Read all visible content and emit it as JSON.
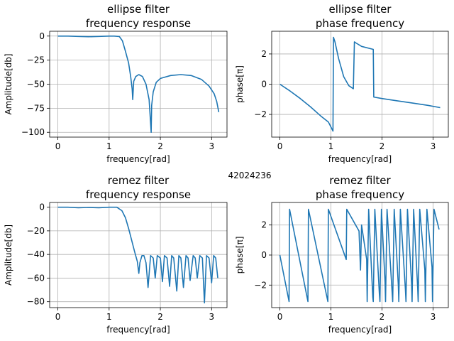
{
  "figure_label": "42024236",
  "colors": {
    "line": "#1f77b4",
    "grid": "#b0b0b0"
  },
  "chart_data": [
    {
      "type": "line",
      "title": "ellipse filter\nfrequency response",
      "xlabel": "frequency[rad]",
      "ylabel": "Amplitude[db]",
      "xlim": [
        -0.16,
        3.3
      ],
      "ylim": [
        -105,
        5
      ],
      "xticks": [
        0,
        1,
        2,
        3
      ],
      "yticks": [
        0,
        -25,
        -50,
        -75,
        -100
      ],
      "grid": true,
      "x": [
        0,
        0.2,
        0.4,
        0.6,
        0.8,
        1.0,
        1.1,
        1.2,
        1.26,
        1.32,
        1.38,
        1.42,
        1.45,
        1.46,
        1.48,
        1.52,
        1.58,
        1.65,
        1.72,
        1.78,
        1.82,
        1.83,
        1.86,
        1.92,
        2.0,
        2.2,
        2.4,
        2.6,
        2.8,
        2.95,
        3.05,
        3.1,
        3.14
      ],
      "series": [
        {
          "values": [
            0,
            0,
            -0.4,
            -0.7,
            -0.4,
            0,
            0,
            -0.5,
            -5,
            -16,
            -28,
            -42,
            -55,
            -66,
            -47,
            -42,
            -40,
            -42,
            -50,
            -66,
            -100,
            -72,
            -58,
            -48,
            -44,
            -41,
            -40,
            -41,
            -45,
            -52,
            -60,
            -68,
            -79
          ]
        }
      ]
    },
    {
      "type": "line",
      "title": "ellipse filter\nphase frequency",
      "xlabel": "frequency[rad]",
      "ylabel": "phase[π]",
      "xlim": [
        -0.16,
        3.3
      ],
      "ylim": [
        -3.5,
        3.5
      ],
      "xticks": [
        0,
        1,
        2,
        3
      ],
      "yticks": [
        2,
        0,
        -2
      ],
      "grid": true,
      "x": [
        0,
        0.2,
        0.4,
        0.6,
        0.8,
        0.95,
        1.04,
        1.05,
        1.08,
        1.15,
        1.25,
        1.35,
        1.44,
        1.46,
        1.48,
        1.6,
        1.83,
        1.84,
        2.0,
        2.3,
        2.6,
        2.9,
        3.14
      ],
      "series": [
        {
          "values": [
            0,
            -0.45,
            -0.95,
            -1.5,
            -2.1,
            -2.5,
            -3.1,
            3.1,
            2.8,
            1.7,
            0.5,
            -0.1,
            -0.3,
            2.8,
            2.75,
            2.5,
            2.3,
            -0.85,
            -0.95,
            -1.1,
            -1.25,
            -1.4,
            -1.55
          ]
        }
      ]
    },
    {
      "type": "line",
      "title": "remez filter\nfrequency response",
      "xlabel": "frequency[rad]",
      "ylabel": "Amplitude[db]",
      "xlim": [
        -0.16,
        3.3
      ],
      "ylim": [
        -85,
        4
      ],
      "xticks": [
        0,
        1,
        2,
        3
      ],
      "yticks": [
        0,
        -20,
        -40,
        -60,
        -80
      ],
      "grid": true,
      "x": [
        0,
        0.2,
        0.4,
        0.6,
        0.8,
        1.0,
        1.15,
        1.25,
        1.32,
        1.38,
        1.44,
        1.5,
        1.55,
        1.58,
        1.6,
        1.64,
        1.68,
        1.72,
        1.76,
        1.81,
        1.86,
        1.9,
        1.94,
        2.0,
        2.04,
        2.08,
        2.13,
        2.18,
        2.22,
        2.26,
        2.32,
        2.36,
        2.4,
        2.45,
        2.5,
        2.54,
        2.58,
        2.64,
        2.68,
        2.72,
        2.77,
        2.82,
        2.86,
        2.9,
        2.95,
        3.0,
        3.04,
        3.08,
        3.12
      ],
      "series": [
        {
          "values": [
            0,
            0,
            -0.5,
            -0.2,
            -0.5,
            0,
            0,
            -3,
            -9,
            -18,
            -28,
            -38,
            -46,
            -56,
            -47,
            -41,
            -41,
            -47,
            -68,
            -41,
            -43,
            -60,
            -41,
            -43,
            -63,
            -41,
            -43,
            -67,
            -41,
            -43,
            -71,
            -41,
            -43,
            -68,
            -41,
            -43,
            -62,
            -41,
            -43,
            -60,
            -41,
            -43,
            -81,
            -41,
            -43,
            -64,
            -41,
            -43,
            -60
          ]
        }
      ]
    },
    {
      "type": "line",
      "title": "remez filter\nphase frequency",
      "xlabel": "frequency[rad]",
      "ylabel": "phase[π]",
      "xlim": [
        -0.16,
        3.3
      ],
      "ylim": [
        -3.5,
        3.5
      ],
      "xticks": [
        0,
        1,
        2,
        3
      ],
      "yticks": [
        2,
        0,
        -2
      ],
      "grid": true,
      "x": [
        0,
        0.18,
        0.19,
        0.55,
        0.56,
        0.94,
        0.95,
        1.3,
        1.31,
        1.55,
        1.58,
        1.6,
        1.7,
        1.71,
        1.74,
        1.82,
        1.83,
        1.86,
        1.95,
        1.96,
        1.99,
        2.06,
        2.07,
        2.1,
        2.2,
        2.21,
        2.24,
        2.32,
        2.33,
        2.36,
        2.46,
        2.47,
        2.5,
        2.58,
        2.59,
        2.62,
        2.7,
        2.71,
        2.74,
        2.84,
        2.85,
        2.88,
        2.98,
        2.99,
        3.02,
        3.12
      ],
      "series": [
        {
          "values": [
            0,
            -3.1,
            3.05,
            -3.1,
            3.05,
            -3.1,
            3.05,
            -0.3,
            3.05,
            1.6,
            -1.0,
            2.0,
            -0.3,
            -3.1,
            3.05,
            -2.8,
            -3.1,
            3.05,
            -2.6,
            -3.1,
            3.05,
            -1.8,
            -3.1,
            3.05,
            -2.5,
            -3.1,
            3.05,
            -2.0,
            -3.1,
            3.05,
            -2.3,
            -3.1,
            3.05,
            -1.9,
            -3.1,
            3.05,
            -2.2,
            -3.1,
            3.05,
            -1.0,
            -3.1,
            3.05,
            -0.8,
            -3.1,
            3.05,
            1.7
          ]
        }
      ]
    }
  ]
}
